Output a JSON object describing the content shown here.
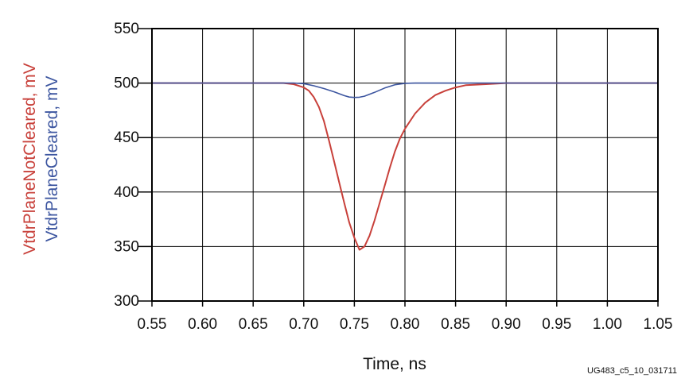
{
  "chart_data": {
    "type": "line",
    "xlabel": "Time, ns",
    "ylabels": [
      "VtdrPlaneNotCleared, mV",
      "VtdrPlaneCleared, mV"
    ],
    "xlim": [
      0.55,
      1.05
    ],
    "ylim": [
      300,
      550
    ],
    "xticks": [
      "0.55",
      "0.60",
      "0.65",
      "0.70",
      "0.75",
      "0.80",
      "0.85",
      "0.90",
      "0.95",
      "1.00",
      "1.05"
    ],
    "yticks": [
      "300",
      "350",
      "400",
      "450",
      "500",
      "550"
    ],
    "grid": true,
    "series": [
      {
        "name": "VtdrPlaneNotCleared, mV",
        "color": "#c8403a",
        "x": [
          0.55,
          0.68,
          0.69,
          0.7,
          0.705,
          0.71,
          0.715,
          0.72,
          0.725,
          0.73,
          0.735,
          0.74,
          0.745,
          0.75,
          0.755,
          0.76,
          0.765,
          0.77,
          0.775,
          0.78,
          0.785,
          0.79,
          0.795,
          0.8,
          0.81,
          0.82,
          0.83,
          0.84,
          0.85,
          0.86,
          0.88,
          0.9,
          1.05
        ],
        "y": [
          500,
          500,
          499,
          496,
          493,
          487,
          478,
          465,
          447,
          428,
          409,
          390,
          372,
          358,
          347,
          350,
          360,
          374,
          390,
          406,
          422,
          437,
          449,
          458,
          472,
          482,
          489,
          493,
          496,
          498,
          499,
          500,
          500
        ]
      },
      {
        "name": "VtdrPlaneCleared, mV",
        "color": "#3d56a0",
        "x": [
          0.55,
          0.69,
          0.7,
          0.71,
          0.72,
          0.73,
          0.74,
          0.745,
          0.75,
          0.755,
          0.76,
          0.77,
          0.78,
          0.79,
          0.8,
          0.81,
          1.05
        ],
        "y": [
          500,
          500,
          499.5,
          497.5,
          495,
          492,
          488.5,
          487.2,
          486.8,
          487,
          488,
          491.5,
          495.5,
          498.5,
          499.8,
          500,
          500
        ]
      }
    ]
  },
  "figure_id": "UG483_c5_10_031711"
}
